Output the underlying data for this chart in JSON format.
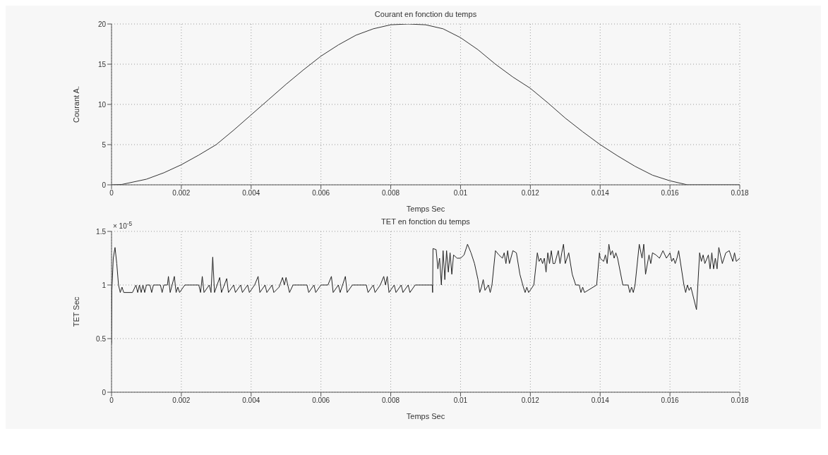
{
  "chart_data": [
    {
      "type": "line",
      "title": "Courant en fonction du temps",
      "xlabel": "Temps Sec",
      "ylabel": "Courant A.",
      "xlim": [
        0,
        0.018
      ],
      "xticks": [
        0,
        0.002,
        0.004,
        0.006,
        0.008,
        0.01,
        0.012,
        0.014,
        0.016,
        0.018
      ],
      "ylim": [
        0,
        20
      ],
      "yticks": [
        0,
        5,
        10,
        15,
        20
      ],
      "grid": true,
      "series": [
        {
          "color": "#333333",
          "x": [
            0,
            0.0003,
            0.001,
            0.0015,
            0.002,
            0.0025,
            0.003,
            0.0035,
            0.004,
            0.0045,
            0.005,
            0.0055,
            0.006,
            0.0065,
            0.007,
            0.0075,
            0.008,
            0.0085,
            0.009,
            0.0095,
            0.01,
            0.0105,
            0.011,
            0.0115,
            0.012,
            0.0125,
            0.013,
            0.0135,
            0.014,
            0.0145,
            0.015,
            0.0155,
            0.016,
            0.0165,
            0.018
          ],
          "values": [
            0,
            0.05,
            0.7,
            1.5,
            2.5,
            3.7,
            5,
            6.8,
            8.7,
            10.6,
            12.5,
            14.3,
            16,
            17.4,
            18.6,
            19.4,
            19.9,
            20,
            19.9,
            19.4,
            18.3,
            16.8,
            15,
            13.4,
            12,
            10.2,
            8.3,
            6.6,
            5,
            3.6,
            2.3,
            1.2,
            0.5,
            0,
            0
          ]
        }
      ]
    },
    {
      "type": "line",
      "title": "TET en fonction du temps",
      "xlabel": "Temps Sec",
      "ylabel": "TET Sec",
      "annotations": [
        "× 10$^{-5}$"
      ],
      "xlim": [
        0,
        0.018
      ],
      "xticks": [
        0,
        0.002,
        0.004,
        0.006,
        0.008,
        0.01,
        0.012,
        0.014,
        0.016,
        0.018
      ],
      "ylim": [
        0,
        1.5
      ],
      "yticks": [
        0,
        0.5,
        1,
        1.5
      ],
      "grid": true,
      "series": [
        {
          "color": "#222222",
          "x": [
            0,
            1e-05,
            5e-05,
            0.0001,
            0.00015,
            0.0002,
            0.00025,
            0.0003,
            0.00035,
            0.0006,
            0.0007,
            0.00075,
            0.0008,
            0.00085,
            0.0009,
            0.00095,
            0.001,
            0.0011,
            0.00115,
            0.0012,
            0.0014,
            0.00145,
            0.0015,
            0.0016,
            0.00163,
            0.00168,
            0.0018,
            0.00185,
            0.0019,
            0.00195,
            0.0021,
            0.0025,
            0.00255,
            0.0026,
            0.00265,
            0.0028,
            0.00285,
            0.0029,
            0.00295,
            0.0031,
            0.00315,
            0.0033,
            0.00335,
            0.0035,
            0.00355,
            0.0037,
            0.00375,
            0.0039,
            0.00395,
            0.0041,
            0.0042,
            0.00425,
            0.0044,
            0.00445,
            0.0046,
            0.00465,
            0.0048,
            0.0049,
            0.00495,
            0.005,
            0.0051,
            0.0052,
            0.0056,
            0.00565,
            0.0058,
            0.00585,
            0.006,
            0.0062,
            0.0063,
            0.00635,
            0.0065,
            0.00655,
            0.0067,
            0.00675,
            0.0069,
            0.0073,
            0.00735,
            0.0075,
            0.00755,
            0.0077,
            0.0078,
            0.00785,
            0.0079,
            0.00795,
            0.0081,
            0.00815,
            0.0083,
            0.00835,
            0.0085,
            0.00855,
            0.0087,
            0.00919,
            0.0092,
            0.00921,
            0.0093,
            0.00935,
            0.0094,
            0.00945,
            0.0095,
            0.00955,
            0.0096,
            0.00965,
            0.0097,
            0.00975,
            0.0098,
            0.0099,
            0.01,
            0.0101,
            0.0102,
            0.0103,
            0.0104,
            0.0105,
            0.01055,
            0.0106,
            0.01065,
            0.0107,
            0.0108,
            0.01085,
            0.0109,
            0.011,
            0.0111,
            0.0112,
            0.01125,
            0.0113,
            0.01135,
            0.0114,
            0.0115,
            0.0116,
            0.0117,
            0.0118,
            0.01185,
            0.0119,
            0.01195,
            0.0121,
            0.0122,
            0.01225,
            0.0123,
            0.01235,
            0.0124,
            0.01245,
            0.0125,
            0.01255,
            0.0126,
            0.01265,
            0.0127,
            0.0128,
            0.01285,
            0.0129,
            0.01295,
            0.013,
            0.0131,
            0.0132,
            0.0133,
            0.0134,
            0.01345,
            0.0135,
            0.01355,
            0.0139,
            0.01398,
            0.014,
            0.0141,
            0.01415,
            0.0142,
            0.01425,
            0.0143,
            0.01435,
            0.0144,
            0.01445,
            0.0145,
            0.01465,
            0.0148,
            0.01485,
            0.0149,
            0.01495,
            0.015,
            0.01512,
            0.0152,
            0.01525,
            0.0153,
            0.0154,
            0.01545,
            0.0155,
            0.0156,
            0.0157,
            0.0158,
            0.0159,
            0.016,
            0.01605,
            0.0161,
            0.01615,
            0.0162,
            0.01625,
            0.0164,
            0.01645,
            0.0165,
            0.01655,
            0.0166,
            0.01676,
            0.01685,
            0.0169,
            0.01695,
            0.017,
            0.0171,
            0.01715,
            0.0172,
            0.01725,
            0.0173,
            0.01735,
            0.0174,
            0.0175,
            0.0176,
            0.0177,
            0.0178,
            0.01785,
            0.0179,
            0.018
          ],
          "values": [
            0.45,
            0.95,
            1.25,
            1.35,
            1.2,
            1.0,
            0.93,
            0.98,
            0.93,
            0.93,
            1.0,
            0.93,
            1.0,
            0.93,
            1.0,
            0.93,
            1.0,
            1.0,
            0.93,
            1.0,
            1.0,
            0.93,
            1.0,
            1.0,
            1.08,
            0.93,
            1.08,
            0.93,
            0.98,
            0.93,
            1.0,
            1.0,
            0.93,
            1.08,
            0.93,
            1.0,
            0.93,
            1.26,
            0.93,
            1.07,
            0.93,
            1.06,
            0.93,
            1.0,
            0.93,
            1.0,
            0.93,
            1.0,
            0.93,
            1.0,
            1.08,
            0.93,
            1.0,
            0.93,
            1.0,
            0.93,
            0.98,
            1.07,
            1.0,
            1.07,
            0.93,
            1.0,
            1.0,
            0.93,
            1.0,
            0.93,
            1.0,
            1.0,
            1.08,
            0.93,
            1.0,
            0.93,
            1.08,
            0.93,
            1.0,
            1.0,
            0.93,
            1.0,
            0.93,
            1.0,
            1.08,
            1.0,
            1.08,
            0.93,
            1.0,
            0.93,
            1.0,
            0.93,
            1.0,
            0.93,
            1.0,
            1.0,
            0.93,
            1.34,
            1.33,
            1.15,
            1.25,
            1.0,
            1.32,
            1.05,
            1.32,
            1.12,
            1.3,
            1.1,
            1.28,
            1.25,
            1.25,
            1.28,
            1.38,
            1.3,
            1.2,
            1.05,
            0.93,
            0.98,
            1.05,
            0.95,
            1.0,
            0.93,
            1.0,
            1.32,
            1.28,
            1.25,
            1.3,
            1.2,
            1.32,
            1.2,
            1.32,
            1.3,
            1.1,
            0.98,
            0.93,
            0.98,
            0.93,
            1.0,
            1.3,
            1.22,
            1.25,
            1.2,
            1.25,
            1.12,
            1.3,
            1.2,
            1.32,
            1.2,
            1.2,
            1.32,
            1.2,
            1.3,
            1.38,
            1.2,
            1.3,
            1.1,
            1.0,
            1.0,
            0.93,
            0.98,
            0.93,
            1.0,
            1.3,
            1.25,
            1.22,
            1.28,
            1.2,
            1.38,
            1.28,
            1.32,
            1.25,
            1.3,
            1.25,
            1.0,
            1.0,
            0.93,
            0.98,
            0.93,
            1.0,
            1.38,
            1.25,
            1.38,
            1.1,
            1.28,
            1.2,
            1.3,
            1.28,
            1.25,
            1.32,
            1.25,
            1.3,
            1.22,
            1.25,
            1.2,
            1.25,
            1.32,
            1.0,
            0.93,
            1.0,
            0.95,
            0.98,
            0.77,
            1.3,
            1.22,
            1.28,
            1.2,
            1.28,
            1.15,
            1.3,
            1.15,
            1.25,
            1.15,
            1.35,
            1.2,
            1.3,
            1.32,
            1.22,
            1.3,
            1.22,
            1.25
          ]
        }
      ]
    }
  ]
}
